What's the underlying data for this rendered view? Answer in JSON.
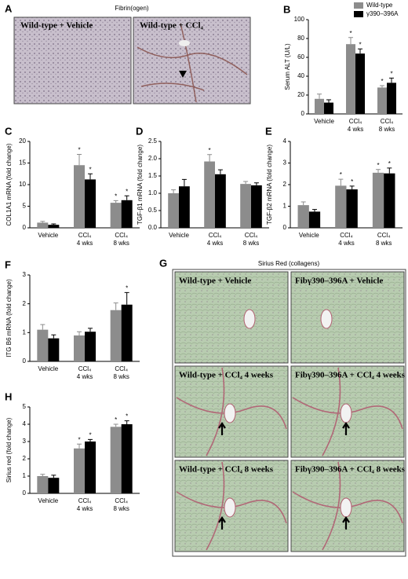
{
  "chart_data": [
    {
      "type": "bar",
      "panel": "B",
      "ylabel": "Serum ALT (U/L)",
      "categories": [
        "Vehicle",
        "CCl₄ 4 wks",
        "CCl₄ 8 wks"
      ],
      "ylim": [
        0,
        100
      ],
      "yticks": [
        0,
        20,
        40,
        60,
        80,
        100
      ],
      "legend": "top-right",
      "series": [
        {
          "name": "Wild-type",
          "color": "#8c8c8c",
          "values": [
            16,
            74,
            28
          ],
          "errors": [
            5,
            7,
            2
          ],
          "significance": [
            null,
            "*",
            "*"
          ]
        },
        {
          "name": "γ390–396A",
          "color": "#000000",
          "values": [
            12,
            64,
            33
          ],
          "errors": [
            3,
            5,
            5
          ],
          "significance": [
            null,
            "*",
            "*"
          ]
        }
      ]
    },
    {
      "type": "bar",
      "panel": "C",
      "ylabel": "COL1A1 mRNA (fold change)",
      "categories": [
        "Vehicle",
        "CCl₄ 4 wks",
        "CCl₄ 8 wks"
      ],
      "ylim": [
        0,
        20
      ],
      "yticks": [
        0,
        5,
        10,
        15,
        20
      ],
      "series": [
        {
          "color": "#8c8c8c",
          "values": [
            1.2,
            14.5,
            5.8
          ],
          "errors": [
            0.3,
            2.5,
            0.5
          ],
          "significance": [
            null,
            "*",
            "*"
          ]
        },
        {
          "color": "#000000",
          "values": [
            0.7,
            11.2,
            6.4
          ],
          "errors": [
            0.2,
            1.3,
            1.0
          ],
          "significance": [
            null,
            "*",
            "*"
          ]
        }
      ]
    },
    {
      "type": "bar",
      "panel": "D",
      "ylabel": "TGF-β1 mRNA (fold change)",
      "categories": [
        "Vehicle",
        "CCl₄ 4 wks",
        "CCl₄ 8 wks"
      ],
      "ylim": [
        0,
        2.5
      ],
      "yticks": [
        {
          "value": 0,
          "label": "0.0"
        },
        {
          "value": 0.5,
          "label": "0.5"
        },
        {
          "value": 1,
          "label": "1.0"
        },
        {
          "value": 1.5,
          "label": "1.5"
        },
        {
          "value": 2,
          "label": "2.0"
        },
        {
          "value": 2.5,
          "label": "2.5"
        }
      ],
      "series": [
        {
          "color": "#8c8c8c",
          "values": [
            1.0,
            1.92,
            1.27
          ],
          "errors": [
            0.1,
            0.2,
            0.07
          ],
          "significance": [
            null,
            "*",
            null
          ]
        },
        {
          "color": "#000000",
          "values": [
            1.2,
            1.55,
            1.23
          ],
          "errors": [
            0.2,
            0.13,
            0.07
          ],
          "significance": [
            null,
            null,
            null
          ]
        }
      ]
    },
    {
      "type": "bar",
      "panel": "E",
      "ylabel": "TGF-β2 mRNA (fold change)",
      "categories": [
        "Vehicle",
        "CCl₄ 4 wks",
        "CCl₄ 8 wks"
      ],
      "ylim": [
        0,
        4
      ],
      "yticks": [
        0,
        1,
        2,
        3,
        4
      ],
      "series": [
        {
          "color": "#8c8c8c",
          "values": [
            1.05,
            1.95,
            2.55
          ],
          "errors": [
            0.15,
            0.3,
            0.15
          ],
          "significance": [
            null,
            "*",
            "*"
          ]
        },
        {
          "color": "#000000",
          "values": [
            0.75,
            1.78,
            2.52
          ],
          "errors": [
            0.1,
            0.15,
            0.25
          ],
          "significance": [
            null,
            "*",
            "*"
          ]
        }
      ]
    },
    {
      "type": "bar",
      "panel": "F",
      "ylabel": "ITG B6 mRNA (fold change)",
      "categories": [
        "Vehicle",
        "CCl₄ 4 wks",
        "CCl₄ 8 wks"
      ],
      "ylim": [
        0,
        3
      ],
      "yticks": [
        0,
        1,
        2,
        3
      ],
      "series": [
        {
          "color": "#8c8c8c",
          "values": [
            1.1,
            0.9,
            1.78
          ],
          "errors": [
            0.18,
            0.13,
            0.25
          ],
          "significance": [
            null,
            null,
            null
          ]
        },
        {
          "color": "#000000",
          "values": [
            0.8,
            1.03,
            1.97
          ],
          "errors": [
            0.12,
            0.12,
            0.42
          ],
          "significance": [
            null,
            null,
            "*"
          ]
        }
      ]
    },
    {
      "type": "bar",
      "panel": "H",
      "ylabel": "Sirius red (fold change)",
      "categories": [
        "Vehicle",
        "CCl₄ 4 wks",
        "CCl₄ 8 wks"
      ],
      "ylim": [
        0,
        5
      ],
      "yticks": [
        0,
        1,
        2,
        3,
        4,
        5
      ],
      "series": [
        {
          "color": "#8c8c8c",
          "values": [
            1.0,
            2.6,
            3.85
          ],
          "errors": [
            0.1,
            0.25,
            0.15
          ],
          "significance": [
            null,
            "*",
            "*"
          ]
        },
        {
          "color": "#000000",
          "values": [
            0.9,
            3.0,
            4.0
          ],
          "errors": [
            0.15,
            0.12,
            0.2
          ],
          "significance": [
            null,
            "*",
            "*"
          ]
        }
      ]
    }
  ],
  "panel_a": {
    "letter": "A",
    "title": "Fibrin(ogen)",
    "captions": [
      "Wild-type + Vehicle",
      "Wild-type + CCl₄"
    ]
  },
  "panel_g": {
    "letter": "G",
    "title": "Sirius Red (collagens)",
    "captions": [
      "Wild-type + Vehicle",
      "Fibγ390–396A + Vehicle",
      "Wild-type + CCl₄ 4 weeks",
      "Fibγ390–396A + CCl₄ 4 weeks",
      "Wild-type + CCl₄ 8 weeks",
      "Fibγ390–396A + CCl₄ 8 weeks"
    ]
  }
}
